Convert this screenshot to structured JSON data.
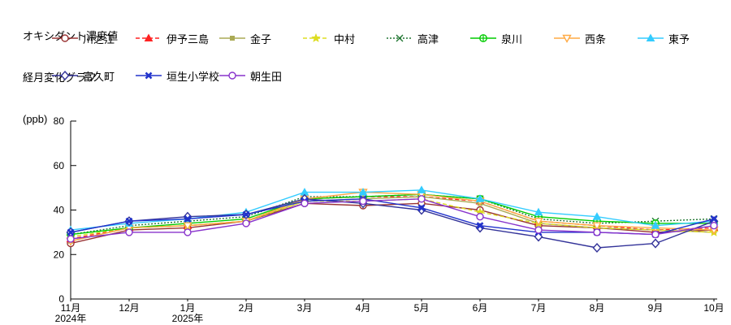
{
  "title": {
    "line1": "オキシダント濃度値",
    "line2": "経月変化グラフ",
    "unit": "(ppb)"
  },
  "axes": {
    "y_tick_labels": [
      "0",
      "20",
      "40",
      "60",
      "80"
    ],
    "x_tick_labels": [
      "11月",
      "12月",
      "1月",
      "2月",
      "3月",
      "4月",
      "5月",
      "6月",
      "7月",
      "8月",
      "9月",
      "10月"
    ],
    "x_year_labels": [
      {
        "index": 0,
        "label": "2024年"
      },
      {
        "index": 2,
        "label": "2025年"
      }
    ]
  },
  "chart_data": {
    "type": "line",
    "title": "オキシダント濃度値 経月変化グラフ",
    "xlabel": "",
    "ylabel": "(ppb)",
    "ylim": [
      0,
      80
    ],
    "yticks": [
      0,
      20,
      40,
      60,
      80
    ],
    "grid": false,
    "legend_position": "top",
    "categories": [
      "11月",
      "12月",
      "1月",
      "2月",
      "3月",
      "4月",
      "5月",
      "6月",
      "7月",
      "8月",
      "9月",
      "10月"
    ],
    "series": [
      {
        "name": "川之江",
        "color": "#993333",
        "line": "solid",
        "marker": "circle-open",
        "values": [
          25,
          31,
          32,
          35,
          43,
          42,
          43,
          40,
          33,
          32,
          30,
          31
        ]
      },
      {
        "name": "伊予三島",
        "color": "#FF2222",
        "line": "dashed",
        "marker": "triangle-up-filled",
        "values": [
          27,
          32,
          33,
          35,
          45,
          46,
          46,
          44,
          35,
          33,
          31,
          32
        ]
      },
      {
        "name": "金子",
        "color": "#AAAA55",
        "line": "solid",
        "marker": "square-filled",
        "values": [
          26,
          32,
          33,
          35,
          44,
          45,
          46,
          43,
          34,
          32,
          31,
          30
        ]
      },
      {
        "name": "中村",
        "color": "#DDDD22",
        "line": "dashed",
        "marker": "star",
        "values": [
          28,
          32,
          33,
          35,
          44,
          44,
          45,
          39,
          34,
          32,
          31,
          30
        ]
      },
      {
        "name": "高津",
        "color": "#227733",
        "line": "dotted",
        "marker": "x-mark",
        "values": [
          29,
          33,
          35,
          37,
          46,
          46,
          47,
          45,
          36,
          34,
          35,
          36
        ]
      },
      {
        "name": "泉川",
        "color": "#00CC00",
        "line": "solid",
        "marker": "circle-plus",
        "values": [
          29,
          32,
          34,
          36,
          45,
          46,
          47,
          45,
          37,
          35,
          34,
          34
        ]
      },
      {
        "name": "西条",
        "color": "#FFAA44",
        "line": "solid",
        "marker": "triangle-down-open",
        "values": [
          26,
          32,
          33,
          35,
          45,
          48,
          47,
          44,
          35,
          33,
          32,
          31
        ]
      },
      {
        "name": "東予",
        "color": "#33CCFF",
        "line": "solid",
        "marker": "triangle-up-filled",
        "values": [
          31,
          34,
          36,
          39,
          48,
          48,
          49,
          45,
          39,
          37,
          33,
          35
        ]
      },
      {
        "name": "富久町",
        "color": "#333399",
        "line": "solid",
        "marker": "diamond-open",
        "values": [
          30,
          35,
          37,
          38,
          45,
          43,
          40,
          32,
          28,
          23,
          25,
          35
        ]
      },
      {
        "name": "垣生小学校",
        "color": "#2233CC",
        "line": "solid",
        "marker": "x-bold",
        "values": [
          30,
          35,
          36,
          38,
          44,
          45,
          41,
          33,
          30,
          30,
          29,
          36
        ]
      },
      {
        "name": "朝生田",
        "color": "#8833CC",
        "line": "solid",
        "marker": "circle-open",
        "values": [
          27,
          30,
          30,
          34,
          43,
          44,
          45,
          37,
          31,
          30,
          29,
          33
        ]
      }
    ]
  }
}
